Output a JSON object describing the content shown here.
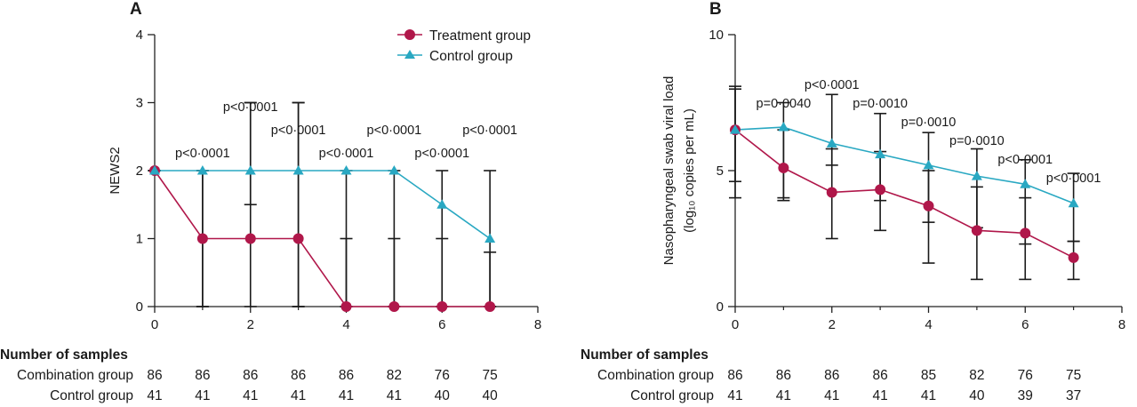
{
  "chart_data": [
    {
      "type": "line",
      "panel_label": "A",
      "ylabel": "NEWS2",
      "xlim": [
        0,
        8
      ],
      "ylim": [
        0,
        4
      ],
      "xticks": [
        "0",
        "2",
        "4",
        "6",
        "8"
      ],
      "yticks": [
        "0",
        "1",
        "2",
        "3",
        "4"
      ],
      "legend_position": "top-right",
      "series": [
        {
          "name": "Treatment group",
          "color": "#b0174a",
          "marker": "circle",
          "x": [
            0,
            1,
            2,
            3,
            4,
            5,
            6,
            7
          ],
          "y": [
            2,
            1,
            1,
            1,
            0,
            0,
            0,
            0
          ],
          "err_low": [
            2,
            0,
            0,
            0,
            0,
            0,
            0,
            0
          ],
          "err_high": [
            2,
            2,
            3,
            3,
            1,
            1,
            1,
            0.8
          ]
        },
        {
          "name": "Control group",
          "color": "#29a8c2",
          "marker": "triangle",
          "x": [
            0,
            1,
            2,
            3,
            4,
            5,
            6,
            7
          ],
          "y": [
            2,
            2,
            2,
            2,
            2,
            2,
            1.5,
            1
          ],
          "err_low": [
            2,
            0,
            1.5,
            0,
            0,
            0,
            0,
            0
          ],
          "err_high": [
            2,
            2,
            3,
            3,
            2,
            2,
            2,
            2
          ]
        }
      ],
      "annotations": [
        {
          "x": 1,
          "label": "p<0·0001",
          "level": 0
        },
        {
          "x": 2,
          "label": "p<0·0001",
          "level": 2
        },
        {
          "x": 3,
          "label": "p<0·0001",
          "level": 1
        },
        {
          "x": 4,
          "label": "p<0·0001",
          "level": 0
        },
        {
          "x": 5,
          "label": "p<0·0001",
          "level": 1
        },
        {
          "x": 6,
          "label": "p<0·0001",
          "level": 0
        },
        {
          "x": 7,
          "label": "p<0·0001",
          "level": 1
        }
      ],
      "samples": {
        "title": "Number of samples",
        "rows": [
          {
            "label": "Combination group",
            "values": [
              "86",
              "86",
              "86",
              "86",
              "86",
              "82",
              "76",
              "75"
            ]
          },
          {
            "label": "Control group",
            "values": [
              "41",
              "41",
              "41",
              "41",
              "41",
              "41",
              "40",
              "40"
            ]
          }
        ]
      }
    },
    {
      "type": "line",
      "panel_label": "B",
      "ylabel": "Nasopharyngeal swab viral load",
      "ylabel_unit": "(log₁₀ copies per mL)",
      "xlim": [
        0,
        8
      ],
      "ylim": [
        0,
        10
      ],
      "xticks": [
        "0",
        "2",
        "4",
        "6",
        "8"
      ],
      "yticks": [
        "0",
        "5",
        "10"
      ],
      "series": [
        {
          "name": "Treatment group",
          "color": "#b0174a",
          "marker": "circle",
          "x": [
            0,
            1,
            2,
            3,
            4,
            5,
            6,
            7
          ],
          "y": [
            6.5,
            5.1,
            4.2,
            4.3,
            3.7,
            2.8,
            2.7,
            1.8
          ],
          "err_low": [
            4.6,
            3.9,
            2.5,
            2.8,
            1.6,
            1.0,
            1.0,
            1.0
          ],
          "err_high": [
            8.0,
            6.5,
            5.8,
            5.7,
            5.0,
            4.4,
            4.0,
            2.4
          ]
        },
        {
          "name": "Control group",
          "color": "#29a8c2",
          "marker": "triangle",
          "x": [
            0,
            1,
            2,
            3,
            4,
            5,
            6,
            7
          ],
          "y": [
            6.5,
            6.6,
            6.0,
            5.6,
            5.2,
            4.8,
            4.5,
            3.8
          ],
          "err_low": [
            4.0,
            4.0,
            5.2,
            3.9,
            3.1,
            2.9,
            2.3,
            2.4
          ],
          "err_high": [
            8.1,
            7.5,
            7.8,
            7.1,
            6.4,
            5.8,
            5.4,
            4.9
          ]
        }
      ],
      "annotations": [
        {
          "x": 1,
          "label": "p=0·0040",
          "level": 3
        },
        {
          "x": 2,
          "label": "p<0·0001",
          "level": 4
        },
        {
          "x": 3,
          "label": "p=0·0010",
          "level": 3
        },
        {
          "x": 4,
          "label": "p=0·0010",
          "level": 2
        },
        {
          "x": 5,
          "label": "p=0·0010",
          "level": 1
        },
        {
          "x": 6,
          "label": "p<0·0001",
          "level": 0
        },
        {
          "x": 7,
          "label": "p<0·0001",
          "level": -1
        }
      ],
      "samples": {
        "title": "Number of samples",
        "rows": [
          {
            "label": "Combination group",
            "values": [
              "86",
              "86",
              "86",
              "86",
              "85",
              "82",
              "76",
              "75"
            ]
          },
          {
            "label": "Control group",
            "values": [
              "41",
              "41",
              "41",
              "41",
              "41",
              "40",
              "39",
              "37"
            ]
          }
        ]
      }
    }
  ]
}
